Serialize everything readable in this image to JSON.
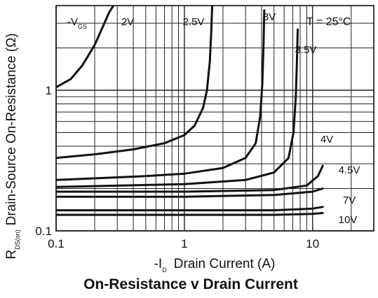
{
  "chart_data": {
    "type": "line",
    "title": "On-Resistance v Drain Current",
    "xlabel": {
      "prefix": "-I",
      "sub": "D",
      "text": "Drain Current (A)"
    },
    "ylabel": {
      "prefix": "R",
      "sub": "DS(on)",
      "text": "Drain-Source On-Resistance (Ω)"
    },
    "x_scale": "log",
    "y_scale": "log",
    "xlim": [
      0.1,
      30
    ],
    "ylim": [
      0.1,
      4
    ],
    "x_ticks": [
      {
        "value": 0.1,
        "label": "0.1"
      },
      {
        "value": 1,
        "label": "1"
      },
      {
        "value": 10,
        "label": "10"
      }
    ],
    "y_ticks": [
      {
        "value": 0.1,
        "label": "0.1"
      },
      {
        "value": 1,
        "label": "1"
      }
    ],
    "grid": true,
    "legend_header": {
      "prefix": "-V",
      "sub": "GS"
    },
    "annotation": "T = 25°C",
    "series": [
      {
        "name": "2V",
        "x": [
          0.1,
          0.13,
          0.16,
          0.2,
          0.23,
          0.26,
          0.28
        ],
        "y": [
          1.05,
          1.2,
          1.5,
          2.1,
          2.8,
          3.6,
          4.0
        ]
      },
      {
        "name": "2.5V",
        "x": [
          0.1,
          0.2,
          0.4,
          0.7,
          1.0,
          1.2,
          1.4,
          1.5,
          1.58,
          1.62,
          1.65
        ],
        "y": [
          0.33,
          0.35,
          0.38,
          0.42,
          0.48,
          0.56,
          0.75,
          1.0,
          1.6,
          2.6,
          4.0
        ]
      },
      {
        "name": "3V",
        "x": [
          0.1,
          0.5,
          1.0,
          2.0,
          3.0,
          3.6,
          3.9,
          4.05,
          4.15,
          4.2
        ],
        "y": [
          0.23,
          0.245,
          0.255,
          0.28,
          0.33,
          0.42,
          0.65,
          1.1,
          2.2,
          3.7
        ]
      },
      {
        "name": "3.5V",
        "x": [
          0.1,
          1.0,
          3.0,
          5.0,
          6.5,
          7.1,
          7.4,
          7.55,
          7.65
        ],
        "y": [
          0.205,
          0.215,
          0.23,
          0.26,
          0.33,
          0.5,
          0.9,
          1.6,
          2.7
        ]
      },
      {
        "name": "4V",
        "x": [
          0.1,
          1.0,
          5.0,
          9.0,
          11.0,
          12.0
        ],
        "y": [
          0.19,
          0.19,
          0.195,
          0.21,
          0.245,
          0.29
        ]
      },
      {
        "name": "4.5V",
        "x": [
          0.1,
          1.0,
          5.0,
          10.0,
          12.0
        ],
        "y": [
          0.175,
          0.175,
          0.18,
          0.19,
          0.2
        ]
      },
      {
        "name": "7V",
        "x": [
          0.1,
          1.0,
          5.0,
          10.0,
          12.0
        ],
        "y": [
          0.14,
          0.14,
          0.14,
          0.144,
          0.148
        ]
      },
      {
        "name": "10V",
        "x": [
          0.1,
          1.0,
          5.0,
          10.0,
          12.0
        ],
        "y": [
          0.13,
          0.13,
          0.13,
          0.132,
          0.134
        ]
      }
    ]
  }
}
